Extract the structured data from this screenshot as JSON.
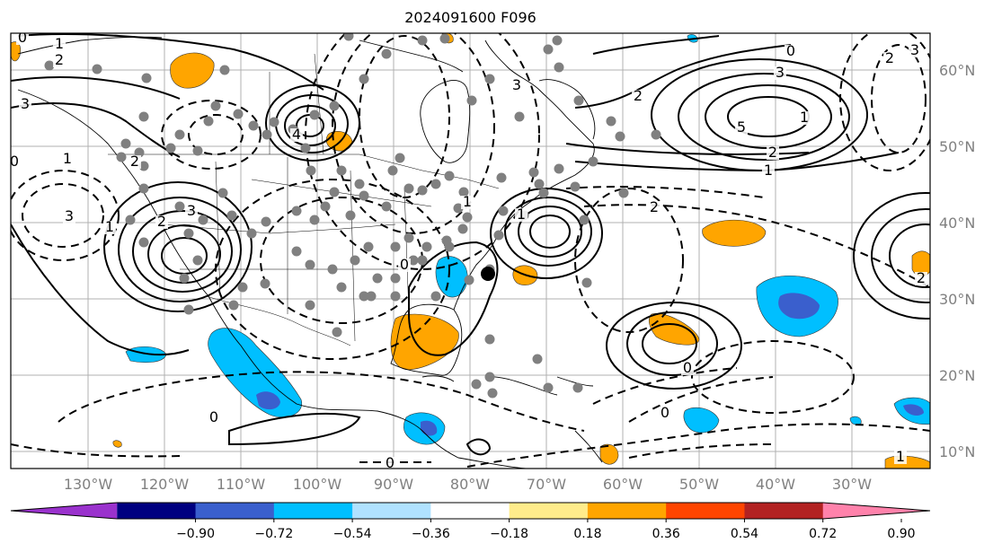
{
  "title": "2024091600 F096",
  "lon_labels": [
    "130°W",
    "120°W",
    "110°W",
    "100°W",
    "90°W",
    "80°W",
    "70°W",
    "60°W",
    "50°W",
    "40°W",
    "30°W"
  ],
  "lat_labels": [
    "60°N",
    "50°N",
    "40°N",
    "30°N",
    "20°N",
    "10°N"
  ],
  "colorbar": {
    "labels": [
      "−0.90",
      "−0.72",
      "−0.54",
      "−0.36",
      "−0.18",
      "0.18",
      "0.36",
      "0.54",
      "0.72",
      "0.90"
    ],
    "colors": [
      "#9a32cd",
      "#000080",
      "#3a5fcd",
      "#00bfff",
      "#b0e2ff",
      "#ffffff",
      "#ffec8b",
      "#ffa500",
      "#ff4500",
      "#b22222",
      "#ff82ab"
    ],
    "extend": "both"
  },
  "contour_labels": [
    "0",
    "1",
    "2",
    "3",
    "3",
    "4",
    "5",
    "2",
    "1",
    "0",
    "2",
    "3",
    "2",
    "1",
    "0",
    "1",
    "2",
    "3",
    "3",
    "2",
    "1",
    "0",
    "1",
    "2",
    "1",
    "0",
    "0",
    "0",
    "0",
    "1",
    "2",
    "3"
  ],
  "marker": "storm-center"
}
